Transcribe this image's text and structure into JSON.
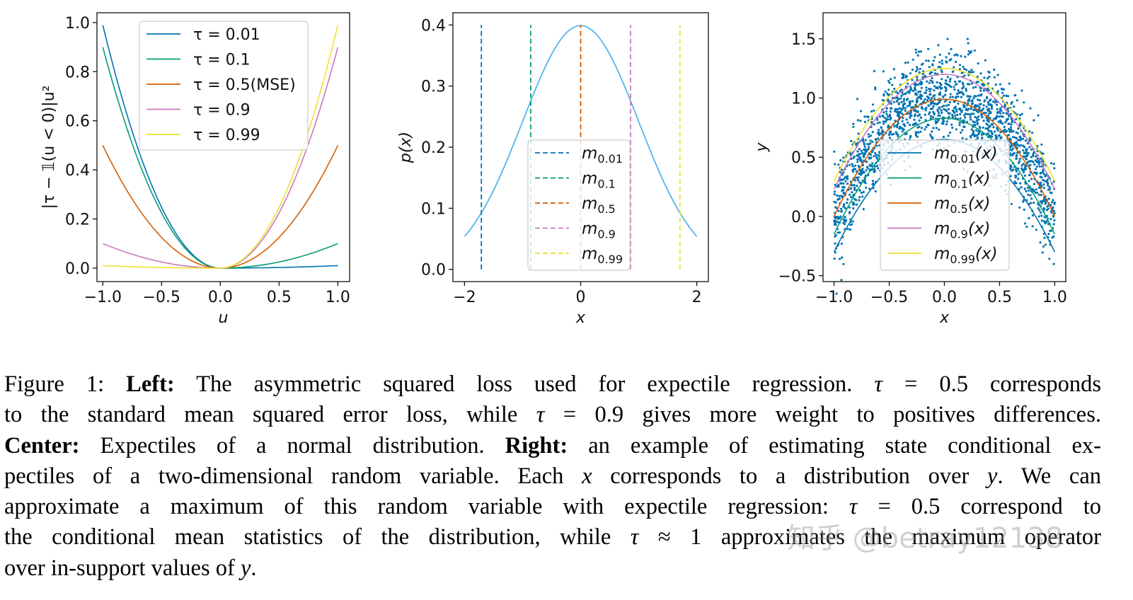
{
  "chart_data": [
    {
      "type": "line",
      "panel": "left",
      "xlabel": "u",
      "ylabel": "|τ − 𝟙(u < 0)|u²",
      "xlim": [
        -1.05,
        1.1
      ],
      "ylim": [
        -0.055,
        1.04
      ],
      "xticks": [
        "−1.0",
        "−0.5",
        "0.0",
        "0.5",
        "1.0"
      ],
      "xtick_values": [
        -1,
        -0.5,
        0,
        0.5,
        1
      ],
      "yticks": [
        "0.0",
        "0.2",
        "0.4",
        "0.6",
        "0.8",
        "1.0"
      ],
      "ytick_values": [
        0,
        0.2,
        0.4,
        0.6,
        0.8,
        1.0
      ],
      "function": "|τ − 𝟙(u<0)| u²",
      "legend_position": "top-center",
      "series": [
        {
          "name": "τ = 0.01",
          "tau": 0.01,
          "color": "#0173b2"
        },
        {
          "name": "τ = 0.1",
          "tau": 0.1,
          "color": "#029e73"
        },
        {
          "name": "τ = 0.5(MSE)",
          "tau": 0.5,
          "color": "#d55e00"
        },
        {
          "name": "τ = 0.9",
          "tau": 0.9,
          "color": "#cc78bc"
        },
        {
          "name": "τ = 0.99",
          "tau": 0.99,
          "color": "#ece133"
        }
      ]
    },
    {
      "type": "line",
      "panel": "center",
      "xlabel": "x",
      "ylabel": "p(x)",
      "xlim": [
        -2.2,
        2.2
      ],
      "ylim": [
        -0.02,
        0.42
      ],
      "xticks": [
        "−2",
        "0",
        "2"
      ],
      "xtick_values": [
        -2,
        0,
        2
      ],
      "yticks": [
        "0.0",
        "0.1",
        "0.2",
        "0.3",
        "0.4"
      ],
      "ytick_values": [
        0,
        0.1,
        0.2,
        0.3,
        0.4
      ],
      "density": {
        "distribution": "standard normal",
        "x_range": [
          -2,
          2
        ],
        "color": "#56b4e9"
      },
      "legend_position": "bottom-center",
      "series": [
        {
          "name": "m0.01",
          "base": "m",
          "sub": "0.01",
          "x": -1.71,
          "color": "#0173b2"
        },
        {
          "name": "m0.1",
          "base": "m",
          "sub": "0.1",
          "x": -0.86,
          "color": "#029e73"
        },
        {
          "name": "m0.5",
          "base": "m",
          "sub": "0.5",
          "x": 0.0,
          "color": "#d55e00"
        },
        {
          "name": "m0.9",
          "base": "m",
          "sub": "0.9",
          "x": 0.86,
          "color": "#cc78bc"
        },
        {
          "name": "m0.99",
          "base": "m",
          "sub": "0.99",
          "x": 1.71,
          "color": "#ece133"
        }
      ]
    },
    {
      "type": "scatter",
      "panel": "right",
      "xlabel": "x",
      "ylabel": "y",
      "xlim": [
        -1.1,
        1.1
      ],
      "ylim": [
        -0.55,
        1.72
      ],
      "xticks": [
        "−1.0",
        "−0.5",
        "0.0",
        "0.5",
        "1.0"
      ],
      "xtick_values": [
        -1,
        -0.5,
        0,
        0.5,
        1
      ],
      "yticks": [
        "−0.5",
        "0.0",
        "0.5",
        "1.0",
        "1.5"
      ],
      "ytick_values": [
        -0.5,
        0,
        0.5,
        1.0,
        1.5
      ],
      "scatter": {
        "relation": "y ≈ 1 − x² + noise",
        "color": "#0173b2"
      },
      "legend_position": "bottom-center",
      "x": [
        -1,
        -0.75,
        -0.5,
        -0.25,
        0,
        0.25,
        0.5,
        0.75,
        1
      ],
      "series": [
        {
          "name": "m0.01(x)",
          "base": "m",
          "sub": "0.01",
          "suffix": "(x)",
          "color": "#0173b2",
          "values": [
            -0.3,
            0.12,
            0.41,
            0.59,
            0.65,
            0.59,
            0.41,
            0.12,
            -0.3
          ]
        },
        {
          "name": "m0.1(x)",
          "base": "m",
          "sub": "0.1",
          "suffix": "(x)",
          "color": "#029e73",
          "values": [
            -0.15,
            0.28,
            0.59,
            0.77,
            0.83,
            0.77,
            0.59,
            0.28,
            -0.15
          ]
        },
        {
          "name": "m0.5(x)",
          "base": "m",
          "sub": "0.5",
          "suffix": "(x)",
          "color": "#d55e00",
          "values": [
            0.0,
            0.43,
            0.74,
            0.93,
            0.99,
            0.93,
            0.74,
            0.43,
            0.0
          ]
        },
        {
          "name": "m0.9(x)",
          "base": "m",
          "sub": "0.9",
          "suffix": "(x)",
          "color": "#cc78bc",
          "values": [
            0.23,
            0.65,
            0.96,
            1.14,
            1.2,
            1.14,
            0.96,
            0.65,
            0.23
          ]
        },
        {
          "name": "m0.99(x)",
          "base": "m",
          "sub": "0.99",
          "suffix": "(x)",
          "color": "#ece133",
          "values": [
            0.3,
            0.72,
            1.01,
            1.19,
            1.25,
            1.19,
            1.01,
            0.72,
            0.3
          ]
        }
      ]
    }
  ],
  "caption": {
    "lines": [
      [
        {
          "t": "Figure 1: "
        },
        {
          "t": "Left:",
          "s": "b"
        },
        {
          "t": " The asymmetric squared loss used for expectile regression. "
        },
        {
          "t": "τ",
          "s": "m"
        },
        {
          "t": " = 0.5 corresponds"
        }
      ],
      [
        {
          "t": "to the standard mean squared error loss, while "
        },
        {
          "t": "τ",
          "s": "m"
        },
        {
          "t": " = 0.9 gives more weight to positives differences."
        }
      ],
      [
        {
          "t": "Center:",
          "s": "b"
        },
        {
          "t": " Expectiles of a normal distribution. "
        },
        {
          "t": "Right:",
          "s": "b"
        },
        {
          "t": " an example of estimating state conditional ex-"
        }
      ],
      [
        {
          "t": "pectiles of a two-dimensional random variable. Each "
        },
        {
          "t": "x",
          "s": "m"
        },
        {
          "t": " corresponds to a distribution over "
        },
        {
          "t": "y",
          "s": "m"
        },
        {
          "t": ". We can"
        }
      ],
      [
        {
          "t": "approximate a maximum of this random variable with expectile regression: "
        },
        {
          "t": "τ",
          "s": "m"
        },
        {
          "t": " = 0.5 correspond to"
        }
      ],
      [
        {
          "t": "the conditional mean statistics of the distribution, while "
        },
        {
          "t": "τ",
          "s": "m"
        },
        {
          "t": " ≈ 1 approximates the maximum operator"
        }
      ],
      [
        {
          "t": "over in-support values of "
        },
        {
          "t": "y",
          "s": "m"
        },
        {
          "t": "."
        }
      ]
    ]
  },
  "watermark": "知乎 @betray12138"
}
